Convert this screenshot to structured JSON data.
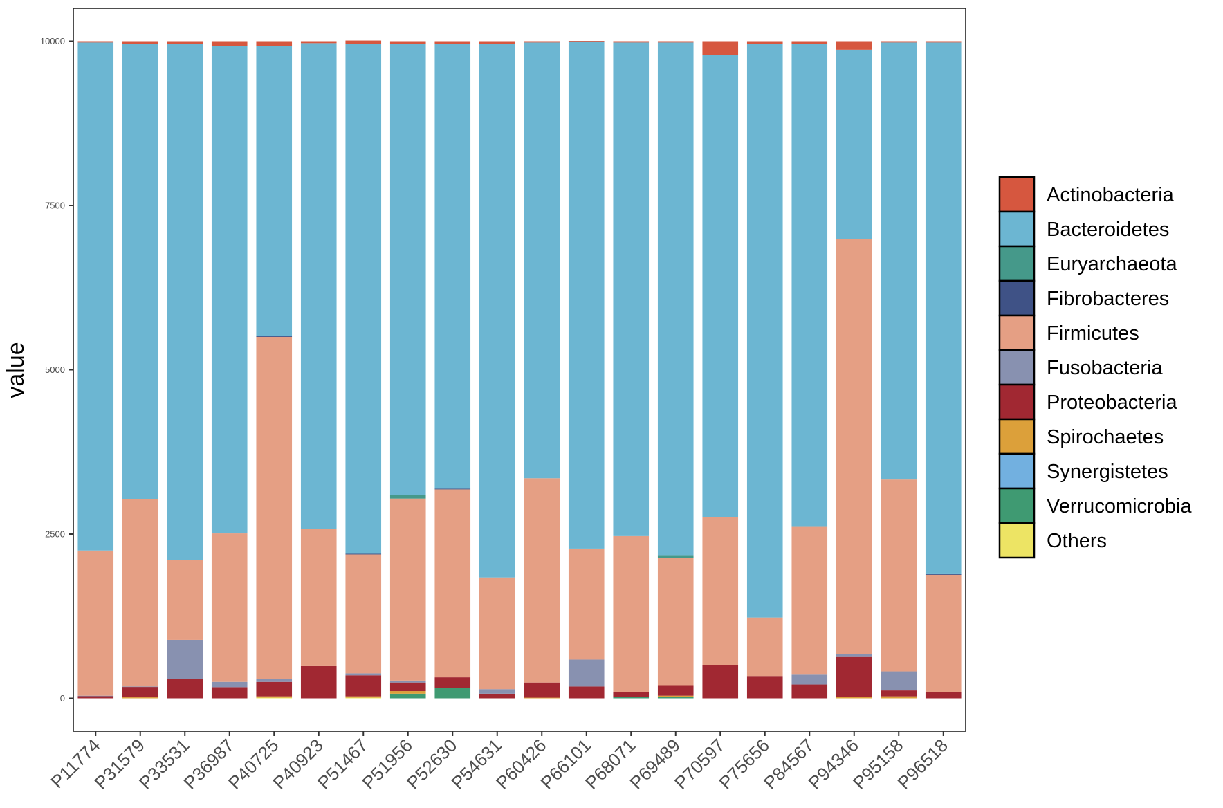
{
  "chart_data": {
    "type": "bar",
    "stacked": true,
    "title": "",
    "xlabel": "",
    "ylabel": "value",
    "ylim": [
      -500,
      10500
    ],
    "yticks": [
      0,
      2500,
      5000,
      7500,
      10000
    ],
    "grid": false,
    "legend_position": "right",
    "categories": [
      "P11774",
      "P31579",
      "P33531",
      "P36987",
      "P40725",
      "P40923",
      "P51467",
      "P51956",
      "P52630",
      "P54631",
      "P60426",
      "P66101",
      "P68071",
      "P69489",
      "P70597",
      "P75656",
      "P84567",
      "P94346",
      "P95158",
      "P96518"
    ],
    "series": [
      {
        "name": "Actinobacteria",
        "color": "#d6573f",
        "values": [
          20,
          40,
          40,
          70,
          70,
          30,
          50,
          40,
          40,
          40,
          20,
          5,
          20,
          20,
          210,
          40,
          40,
          130,
          20,
          20
        ]
      },
      {
        "name": "Bacteroidetes",
        "color": "#6cb6d2",
        "values": [
          7730,
          6930,
          7860,
          7420,
          4420,
          7390,
          7760,
          6860,
          6770,
          8120,
          6630,
          7720,
          7510,
          7800,
          7030,
          8730,
          7350,
          2880,
          6650,
          8090
        ]
      },
      {
        "name": "Euryarchaeota",
        "color": "#45998a",
        "values": [
          0,
          0,
          0,
          0,
          0,
          0,
          0,
          60,
          0,
          0,
          0,
          0,
          0,
          40,
          0,
          0,
          0,
          0,
          0,
          0
        ]
      },
      {
        "name": "Fibrobacteres",
        "color": "#3f5286",
        "values": [
          0,
          0,
          0,
          0,
          10,
          0,
          10,
          0,
          10,
          0,
          0,
          10,
          0,
          0,
          0,
          0,
          0,
          0,
          0,
          10
        ]
      },
      {
        "name": "Firmicutes",
        "color": "#e59f84",
        "values": [
          2210,
          2850,
          1210,
          2260,
          5210,
          2090,
          1810,
          2770,
          2860,
          1700,
          3110,
          1680,
          2370,
          1940,
          2260,
          890,
          2250,
          6320,
          2920,
          1780
        ]
      },
      {
        "name": "Fusobacteria",
        "color": "#8891b0",
        "values": [
          5,
          5,
          590,
          80,
          40,
          0,
          30,
          30,
          0,
          70,
          0,
          410,
          0,
          0,
          0,
          0,
          150,
          30,
          290,
          0
        ]
      },
      {
        "name": "Proteobacteria",
        "color": "#a12832",
        "values": [
          35,
          160,
          300,
          170,
          220,
          490,
          320,
          130,
          160,
          70,
          230,
          180,
          80,
          160,
          500,
          340,
          210,
          620,
          90,
          100
        ]
      },
      {
        "name": "Spirochaetes",
        "color": "#dca03a",
        "values": [
          0,
          15,
          0,
          0,
          20,
          0,
          20,
          40,
          0,
          0,
          10,
          0,
          0,
          20,
          0,
          0,
          0,
          20,
          30,
          0
        ]
      },
      {
        "name": "Synergistetes",
        "color": "#72b0e0",
        "values": [
          0,
          0,
          0,
          0,
          0,
          0,
          0,
          0,
          0,
          0,
          0,
          0,
          0,
          0,
          0,
          0,
          0,
          0,
          0,
          0
        ]
      },
      {
        "name": "Verrucomicrobia",
        "color": "#3f9a72",
        "values": [
          0,
          0,
          0,
          0,
          0,
          0,
          0,
          70,
          160,
          0,
          0,
          0,
          20,
          20,
          0,
          0,
          0,
          0,
          0,
          0
        ]
      },
      {
        "name": "Others",
        "color": "#ede464",
        "values": [
          0,
          0,
          0,
          0,
          10,
          0,
          10,
          0,
          0,
          0,
          0,
          0,
          0,
          0,
          0,
          0,
          0,
          0,
          0,
          0
        ]
      }
    ]
  }
}
